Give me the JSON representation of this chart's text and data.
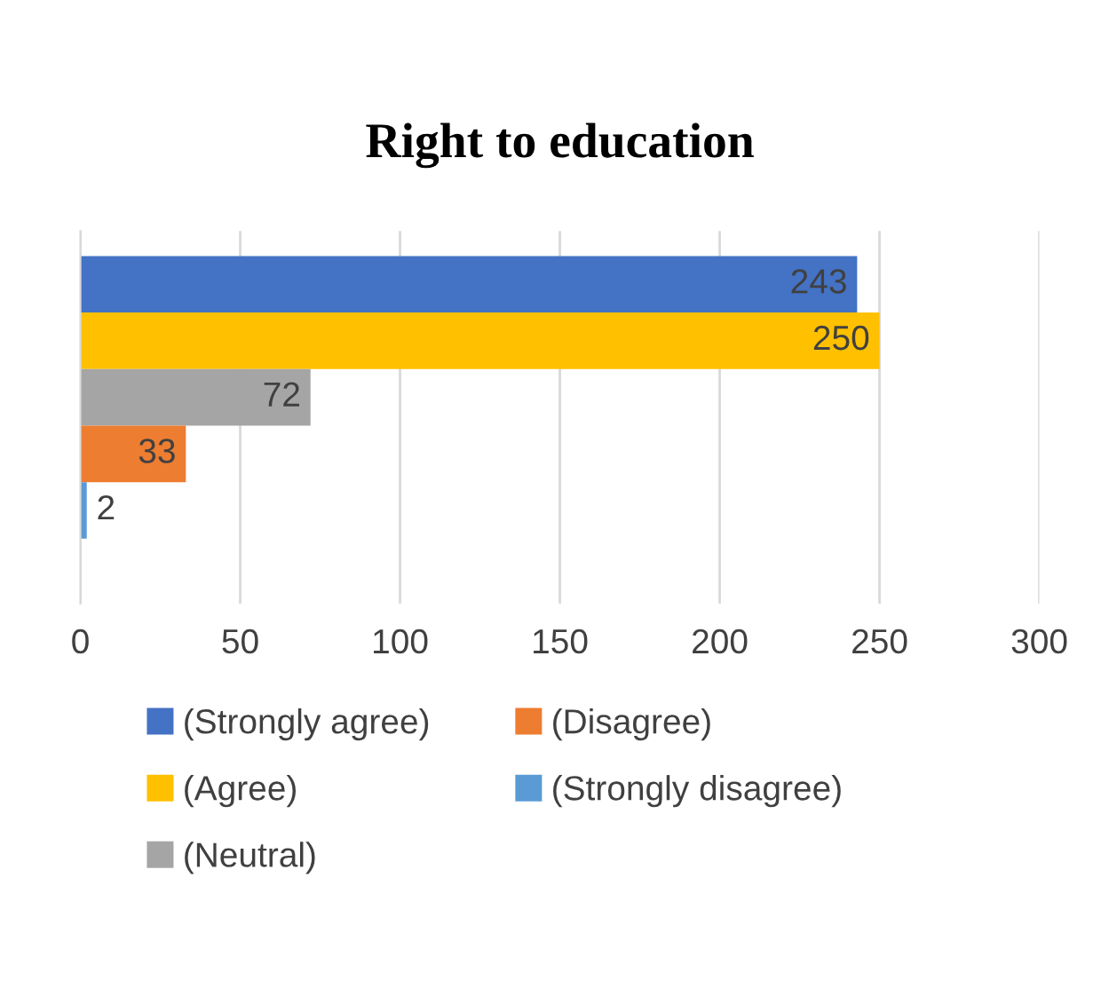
{
  "chart_data": {
    "type": "bar",
    "title": "Right to education",
    "orientation": "horizontal",
    "categories": [
      null
    ],
    "series": [
      {
        "name": "(Strongly agree)",
        "color": "#4472c4",
        "values": [
          243
        ]
      },
      {
        "name": "(Agree)",
        "color": "#ffc000",
        "values": [
          250
        ]
      },
      {
        "name": "(Neutral)",
        "color": "#a5a5a5",
        "values": [
          72
        ]
      },
      {
        "name": "(Disagree)",
        "color": "#ed7d31",
        "values": [
          33
        ]
      },
      {
        "name": "(Strongly disagree)",
        "color": "#5b9bd5",
        "values": [
          2
        ]
      }
    ],
    "xlim": [
      0,
      300
    ],
    "xticks": [
      0,
      50,
      100,
      150,
      200,
      250,
      300
    ],
    "grid": "x",
    "legend": "bottom",
    "data_labels": true
  }
}
